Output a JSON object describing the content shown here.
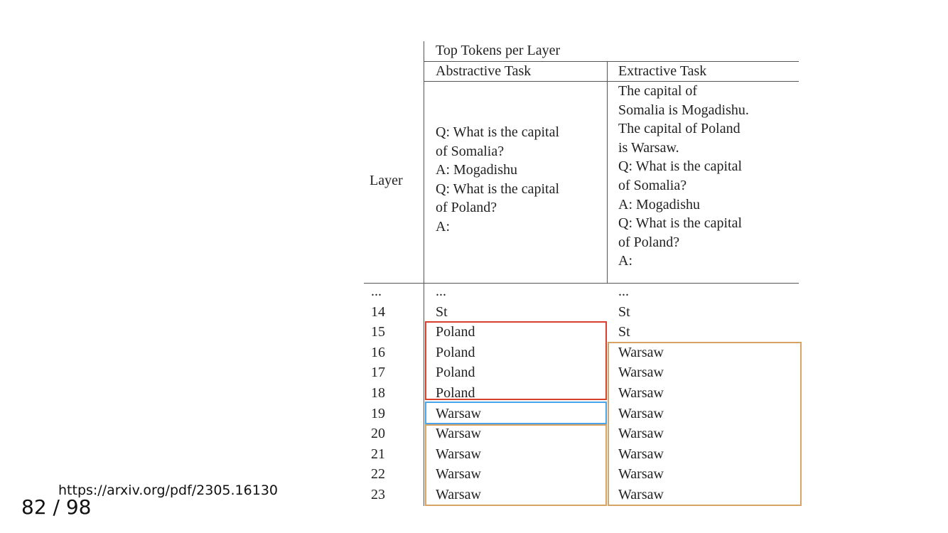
{
  "table": {
    "header_top": "Top Tokens per Layer",
    "layer_label": "Layer",
    "abstractive_header": "Abstractive Task",
    "extractive_header": "Extractive Task",
    "abstractive_prompt": [
      "Q: What is the capital",
      "of Somalia?",
      "A: Mogadishu",
      "Q: What is the capital",
      "of Poland?",
      "A:"
    ],
    "extractive_prompt": [
      "The capital of",
      "Somalia is Mogadishu.",
      "The capital of Poland",
      "is Warsaw.",
      "Q: What is the capital",
      "of Somalia?",
      "A: Mogadishu",
      "Q: What is the capital",
      "of Poland?",
      "A:"
    ],
    "rows": [
      {
        "layer": "...",
        "abstractive": "...",
        "extractive": "..."
      },
      {
        "layer": "14",
        "abstractive": "St",
        "extractive": "St"
      },
      {
        "layer": "15",
        "abstractive": "Poland",
        "extractive": "St"
      },
      {
        "layer": "16",
        "abstractive": "Poland",
        "extractive": "Warsaw"
      },
      {
        "layer": "17",
        "abstractive": "Poland",
        "extractive": "Warsaw"
      },
      {
        "layer": "18",
        "abstractive": "Poland",
        "extractive": "Warsaw"
      },
      {
        "layer": "19",
        "abstractive": "Warsaw",
        "extractive": "Warsaw"
      },
      {
        "layer": "20",
        "abstractive": "Warsaw",
        "extractive": "Warsaw"
      },
      {
        "layer": "21",
        "abstractive": "Warsaw",
        "extractive": "Warsaw"
      },
      {
        "layer": "22",
        "abstractive": "Warsaw",
        "extractive": "Warsaw"
      },
      {
        "layer": "23",
        "abstractive": "Warsaw",
        "extractive": "Warsaw"
      }
    ],
    "highlight_colors": {
      "red": "#d9402b",
      "blue": "#4aa3e8",
      "tan": "#d7a466"
    }
  },
  "footer": {
    "url": "https://arxiv.org/pdf/2305.16130",
    "page": "82 / 98"
  }
}
